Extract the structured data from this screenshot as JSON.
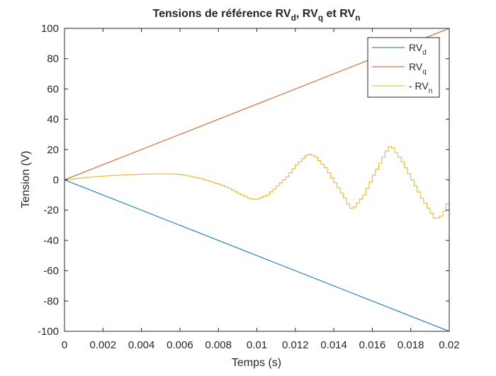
{
  "chart_data": {
    "type": "line",
    "title": {
      "main": "Tensions de référence RV",
      "parts": [
        {
          "text": "Tensions de référence RV",
          "sub": false
        },
        {
          "text": "d",
          "sub": true
        },
        {
          "text": ", RV",
          "sub": false
        },
        {
          "text": "q",
          "sub": true
        },
        {
          "text": " et RV",
          "sub": false
        },
        {
          "text": "n",
          "sub": true
        }
      ]
    },
    "xlabel": "Temps (s)",
    "ylabel": "Tension (V)",
    "xlim": [
      0,
      0.02
    ],
    "ylim": [
      -100,
      100
    ],
    "xticks": [
      0,
      0.002,
      0.004,
      0.006,
      0.008,
      0.01,
      0.012,
      0.014,
      0.016,
      0.018,
      0.02
    ],
    "xtick_labels": [
      "0",
      "0.002",
      "0.004",
      "0.006",
      "0.008",
      "0.01",
      "0.012",
      "0.014",
      "0.016",
      "0.018",
      "0.02"
    ],
    "yticks": [
      -100,
      -80,
      -60,
      -40,
      -20,
      0,
      20,
      40,
      60,
      80,
      100
    ],
    "ytick_labels": [
      "-100",
      "-80",
      "-60",
      "-40",
      "-20",
      "0",
      "20",
      "40",
      "60",
      "80",
      "100"
    ],
    "grid": false,
    "legend_position": "top-right",
    "series": [
      {
        "name": "RV",
        "name_sub": "d",
        "color": "#0072BD",
        "step": false,
        "x": [
          0,
          0.02
        ],
        "y": [
          0,
          -100
        ]
      },
      {
        "name": "RV",
        "name_sub": "q",
        "color": "#D95319",
        "step": false,
        "x": [
          0,
          0.02
        ],
        "y": [
          0,
          100
        ]
      },
      {
        "name": "- RV",
        "name_sub": "n",
        "color": "#EDB120",
        "step": true,
        "x": [
          0,
          0.001,
          0.002,
          0.003,
          0.004,
          0.005,
          0.0055,
          0.006,
          0.007,
          0.008,
          0.0085,
          0.009,
          0.0095,
          0.0098,
          0.01,
          0.0105,
          0.011,
          0.0115,
          0.012,
          0.0125,
          0.0127,
          0.013,
          0.0135,
          0.014,
          0.0145,
          0.0148,
          0.015,
          0.0155,
          0.016,
          0.0165,
          0.0168,
          0.017,
          0.0175,
          0.018,
          0.0185,
          0.019,
          0.0192,
          0.0195,
          0.0198,
          0.02
        ],
        "y": [
          0,
          1.5,
          2.5,
          3.2,
          3.8,
          4,
          4,
          3.5,
          1,
          -3,
          -5.5,
          -9,
          -12,
          -13,
          -12.5,
          -10,
          -4,
          2,
          10,
          16,
          17,
          15,
          8,
          -2,
          -12,
          -19,
          -18,
          -10,
          3,
          15,
          22,
          21,
          12,
          0,
          -12,
          -22,
          -26,
          -24,
          -18,
          -5
        ]
      }
    ]
  }
}
